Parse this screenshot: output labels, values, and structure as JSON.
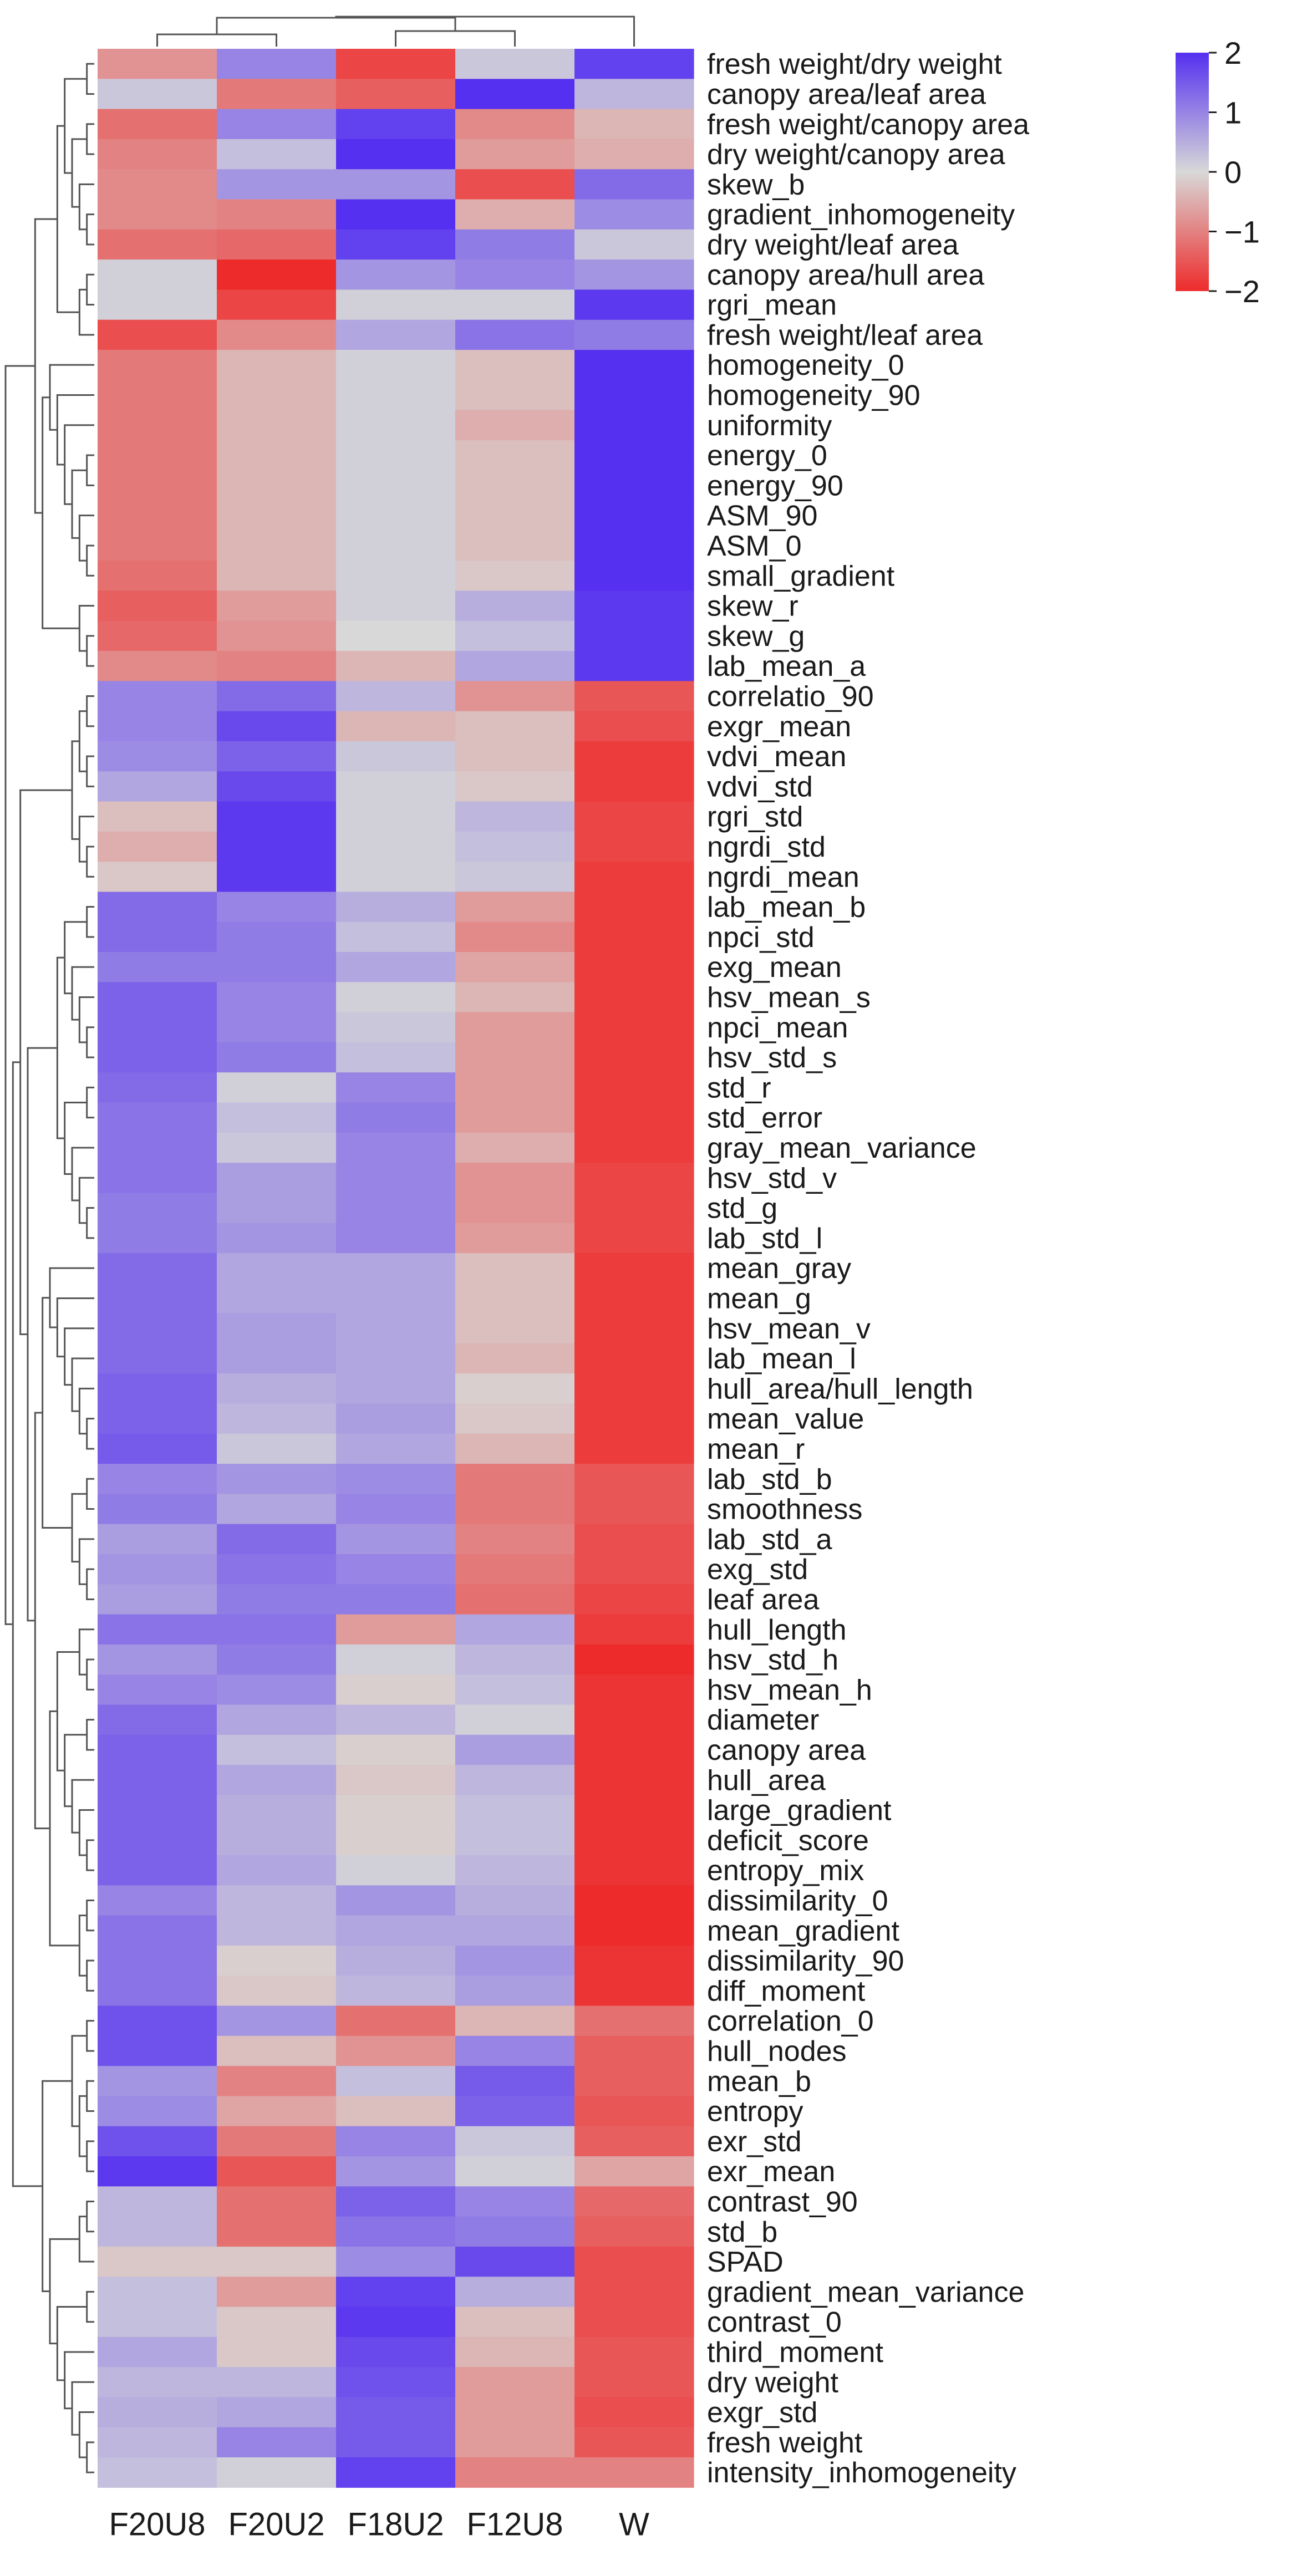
{
  "chart_data": {
    "type": "heatmap",
    "title": "",
    "xlabel": "",
    "ylabel": "",
    "columns": [
      "F20U8",
      "F20U2",
      "F18U2",
      "F12U8",
      "W"
    ],
    "rows": [
      "fresh weight/dry weight",
      "canopy area/leaf area",
      "fresh weight/canopy area",
      "dry weight/canopy area",
      "skew_b",
      "gradient_inhomogeneity",
      "dry weight/leaf area",
      "canopy area/hull area",
      "rgri_mean",
      "fresh weight/leaf area",
      "homogeneity_0",
      "homogeneity_90",
      "uniformity",
      "energy_0",
      "energy_90",
      "ASM_90",
      "ASM_0",
      "small_gradient",
      "skew_r",
      "skew_g",
      "lab_mean_a",
      "correlatio_90",
      "exgr_mean",
      "vdvi_mean",
      "vdvi_std",
      "rgri_std",
      "ngrdi_std",
      "ngrdi_mean",
      "lab_mean_b",
      "npci_std",
      "exg_mean",
      "hsv_mean_s",
      "npci_mean",
      "hsv_std_s",
      "std_r",
      "std_error",
      "gray_mean_variance",
      "hsv_std_v",
      "std_g",
      "lab_std_l",
      "mean_gray",
      "mean_g",
      "hsv_mean_v",
      "lab_mean_l",
      "hull_area/hull_length",
      "mean_value",
      "mean_r",
      "lab_std_b",
      "smoothness",
      "lab_std_a",
      "exg_std",
      "leaf area",
      "hull_length",
      "hsv_std_h",
      "hsv_mean_h",
      "diameter",
      "canopy area",
      "hull_area",
      "large_gradient",
      "deficit_score",
      "entropy_mix",
      "dissimilarity_0",
      "mean_gradient",
      "dissimilarity_90",
      "diff_moment",
      "correlation_0",
      "hull_nodes",
      "mean_b",
      "entropy",
      "exr_std",
      "exr_mean",
      "contrast_90",
      "std_b",
      "SPAD",
      "gradient_mean_variance",
      "contrast_0",
      "third_moment",
      "dry weight",
      "exgr_std",
      "fresh weight",
      "intensity_inhomogeneity"
    ],
    "values": [
      [
        -0.8,
        1.0,
        -1.7,
        0.2,
        1.8
      ],
      [
        0.2,
        -1.1,
        -1.4,
        2.0,
        0.4
      ],
      [
        -1.2,
        1.0,
        1.8,
        -0.9,
        -0.4
      ],
      [
        -1.0,
        0.3,
        2.0,
        -0.7,
        -0.5
      ],
      [
        -0.9,
        0.8,
        0.8,
        -1.6,
        1.3
      ],
      [
        -0.9,
        -1.0,
        2.0,
        -0.5,
        0.9
      ],
      [
        -1.2,
        -1.3,
        1.8,
        1.1,
        0.2
      ],
      [
        0.1,
        -2.0,
        0.8,
        1.0,
        0.8
      ],
      [
        0.1,
        -1.7,
        0.1,
        0.1,
        1.9
      ],
      [
        -1.6,
        -0.9,
        0.6,
        1.2,
        1.1
      ],
      [
        -1.1,
        -0.4,
        0.1,
        -0.3,
        2.0
      ],
      [
        -1.1,
        -0.4,
        0.1,
        -0.3,
        2.0
      ],
      [
        -1.1,
        -0.4,
        0.1,
        -0.5,
        2.0
      ],
      [
        -1.1,
        -0.4,
        0.1,
        -0.3,
        2.0
      ],
      [
        -1.1,
        -0.4,
        0.1,
        -0.3,
        2.0
      ],
      [
        -1.1,
        -0.4,
        0.1,
        -0.3,
        2.0
      ],
      [
        -1.1,
        -0.4,
        0.1,
        -0.3,
        2.0
      ],
      [
        -1.2,
        -0.4,
        0.1,
        -0.2,
        2.0
      ],
      [
        -1.4,
        -0.7,
        0.1,
        0.5,
        1.9
      ],
      [
        -1.3,
        -0.8,
        0.0,
        0.3,
        1.9
      ],
      [
        -0.9,
        -1.0,
        -0.4,
        0.6,
        1.9
      ],
      [
        1.0,
        1.3,
        0.4,
        -0.8,
        -1.5
      ],
      [
        1.0,
        1.7,
        -0.4,
        -0.3,
        -1.6
      ],
      [
        0.9,
        1.4,
        0.2,
        -0.3,
        -1.8
      ],
      [
        0.6,
        1.7,
        0.1,
        -0.2,
        -1.8
      ],
      [
        -0.3,
        1.9,
        0.1,
        0.4,
        -1.7
      ],
      [
        -0.5,
        1.9,
        0.1,
        0.3,
        -1.7
      ],
      [
        -0.2,
        1.9,
        0.1,
        0.2,
        -1.8
      ],
      [
        1.3,
        1.0,
        0.5,
        -0.7,
        -1.8
      ],
      [
        1.3,
        1.1,
        0.3,
        -0.9,
        -1.8
      ],
      [
        1.1,
        1.1,
        0.6,
        -0.6,
        -1.8
      ],
      [
        1.4,
        1.0,
        0.1,
        -0.4,
        -1.8
      ],
      [
        1.4,
        1.0,
        0.2,
        -0.7,
        -1.8
      ],
      [
        1.4,
        1.1,
        0.3,
        -0.7,
        -1.8
      ],
      [
        1.3,
        0.1,
        1.0,
        -0.7,
        -1.8
      ],
      [
        1.2,
        0.3,
        1.1,
        -0.7,
        -1.8
      ],
      [
        1.2,
        0.2,
        1.0,
        -0.5,
        -1.8
      ],
      [
        1.2,
        0.7,
        1.0,
        -0.8,
        -1.7
      ],
      [
        1.1,
        0.7,
        1.0,
        -0.8,
        -1.7
      ],
      [
        1.1,
        0.8,
        1.0,
        -0.7,
        -1.7
      ],
      [
        1.3,
        0.6,
        0.6,
        -0.3,
        -1.8
      ],
      [
        1.3,
        0.6,
        0.6,
        -0.3,
        -1.8
      ],
      [
        1.3,
        0.7,
        0.6,
        -0.3,
        -1.8
      ],
      [
        1.3,
        0.7,
        0.6,
        -0.4,
        -1.8
      ],
      [
        1.4,
        0.5,
        0.6,
        -0.1,
        -1.8
      ],
      [
        1.4,
        0.4,
        0.7,
        -0.2,
        -1.8
      ],
      [
        1.5,
        0.2,
        0.6,
        -0.4,
        -1.8
      ],
      [
        1.0,
        0.8,
        0.9,
        -1.1,
        -1.5
      ],
      [
        1.1,
        0.6,
        1.0,
        -1.1,
        -1.5
      ],
      [
        0.7,
        1.3,
        0.8,
        -1.0,
        -1.6
      ],
      [
        0.8,
        1.2,
        1.0,
        -1.1,
        -1.6
      ],
      [
        0.7,
        1.1,
        1.1,
        -1.2,
        -1.7
      ],
      [
        1.2,
        1.2,
        -0.7,
        0.6,
        -1.8
      ],
      [
        0.8,
        1.1,
        0.1,
        0.4,
        -2.0
      ],
      [
        1.0,
        0.9,
        -0.1,
        0.3,
        -1.9
      ],
      [
        1.3,
        0.6,
        0.4,
        0.1,
        -1.9
      ],
      [
        1.4,
        0.3,
        -0.1,
        0.7,
        -1.9
      ],
      [
        1.4,
        0.6,
        -0.2,
        0.4,
        -1.9
      ],
      [
        1.4,
        0.5,
        -0.1,
        0.3,
        -1.9
      ],
      [
        1.4,
        0.5,
        -0.1,
        0.3,
        -1.9
      ],
      [
        1.4,
        0.6,
        0.1,
        0.4,
        -1.9
      ],
      [
        1.0,
        0.4,
        0.8,
        0.5,
        -2.0
      ],
      [
        1.2,
        0.4,
        0.6,
        0.6,
        -2.0
      ],
      [
        1.2,
        -0.1,
        0.5,
        0.8,
        -1.9
      ],
      [
        1.2,
        -0.2,
        0.4,
        0.7,
        -1.9
      ],
      [
        1.6,
        0.8,
        -1.2,
        -0.4,
        -1.2
      ],
      [
        1.6,
        -0.3,
        -0.8,
        1.0,
        -1.4
      ],
      [
        0.8,
        -1.0,
        0.3,
        1.5,
        -1.4
      ],
      [
        0.9,
        -0.6,
        -0.3,
        1.4,
        -1.5
      ],
      [
        1.6,
        -1.1,
        1.0,
        0.2,
        -1.4
      ],
      [
        1.9,
        -1.5,
        0.8,
        0.1,
        -0.6
      ],
      [
        0.4,
        -1.2,
        1.4,
        1.0,
        -1.3
      ],
      [
        0.4,
        -1.2,
        1.2,
        1.1,
        -1.4
      ],
      [
        -0.2,
        -0.2,
        0.9,
        1.7,
        -1.6
      ],
      [
        0.3,
        -0.7,
        1.8,
        0.5,
        -1.6
      ],
      [
        0.3,
        -0.2,
        1.9,
        -0.3,
        -1.6
      ],
      [
        0.6,
        -0.2,
        1.7,
        -0.4,
        -1.5
      ],
      [
        0.4,
        0.4,
        1.6,
        -0.7,
        -1.5
      ],
      [
        0.5,
        0.6,
        1.5,
        -0.7,
        -1.6
      ],
      [
        0.4,
        1.0,
        1.5,
        -0.7,
        -1.5
      ],
      [
        0.3,
        0.1,
        1.8,
        -1.0,
        -1.0
      ]
    ],
    "vmin": -2,
    "vmax": 2,
    "colormap": {
      "low": "#ee2b2b",
      "mid": "#d8d8d8",
      "high": "#5530f0"
    },
    "colorbar": {
      "ticks": [
        2,
        1,
        0,
        -1,
        -2
      ],
      "tick_labels": [
        "2",
        "1",
        "0",
        "−1",
        "−2"
      ],
      "placement": "top-right"
    },
    "dendrogram": {
      "side": "left",
      "column_dendrogram": "top",
      "line_color": "#555555"
    },
    "legend": "colorbar top-right",
    "grid": false
  }
}
